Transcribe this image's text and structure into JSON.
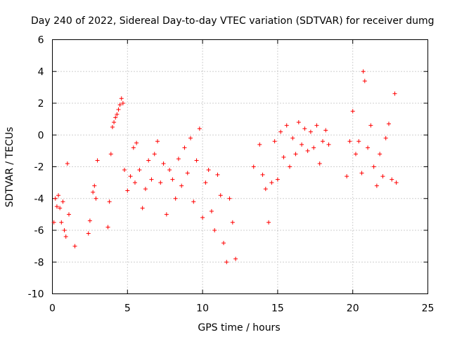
{
  "chart_data": {
    "type": "scatter",
    "title": "Day 240 of 2022, Sidereal Day-to-day VTEC variation (SDTVAR) for receiver dumg",
    "xlabel": "GPS time / hours",
    "ylabel": "SDTVAR / TECUs",
    "xlim": [
      0,
      25
    ],
    "ylim": [
      -10,
      6
    ],
    "xticks": [
      0,
      5,
      10,
      15,
      20,
      25
    ],
    "yticks": [
      -10,
      -8,
      -6,
      -4,
      -2,
      0,
      2,
      4,
      6
    ],
    "grid": true,
    "marker": "plus",
    "color": "#ff0000",
    "series": [
      {
        "name": "SDTVAR",
        "x": [
          0.1,
          0.2,
          0.3,
          0.4,
          0.5,
          0.6,
          0.7,
          0.8,
          0.9,
          1.0,
          1.1,
          1.5,
          2.4,
          2.5,
          2.7,
          2.8,
          2.9,
          3.0,
          3.7,
          3.8,
          3.9,
          4.0,
          4.1,
          4.2,
          4.3,
          4.4,
          4.5,
          4.6,
          4.7,
          4.8,
          5.0,
          5.2,
          5.4,
          5.5,
          5.6,
          5.8,
          6.0,
          6.2,
          6.4,
          6.6,
          6.8,
          7.0,
          7.2,
          7.4,
          7.6,
          7.8,
          8.0,
          8.2,
          8.4,
          8.6,
          8.8,
          9.0,
          9.2,
          9.4,
          9.6,
          9.8,
          10.0,
          10.2,
          10.4,
          10.6,
          10.8,
          11.0,
          11.2,
          11.4,
          11.6,
          11.8,
          12.0,
          12.2,
          13.4,
          13.8,
          14.0,
          14.2,
          14.4,
          14.6,
          14.8,
          15.0,
          15.2,
          15.4,
          15.6,
          15.8,
          16.0,
          16.2,
          16.4,
          16.6,
          16.8,
          17.0,
          17.2,
          17.4,
          17.6,
          17.8,
          18.0,
          18.2,
          18.4,
          19.6,
          19.8,
          20.0,
          20.2,
          20.4,
          20.6,
          20.7,
          20.8,
          21.0,
          21.2,
          21.4,
          21.6,
          21.8,
          22.0,
          22.2,
          22.4,
          22.6,
          22.8,
          22.9
        ],
        "y": [
          -5.5,
          -4.0,
          -4.5,
          -3.8,
          -4.6,
          -5.5,
          -4.2,
          -6.0,
          -6.4,
          -1.8,
          -5.0,
          -7.0,
          -6.2,
          -5.4,
          -3.6,
          -3.2,
          -4.0,
          -1.6,
          -5.8,
          -4.2,
          -1.2,
          0.5,
          0.8,
          1.1,
          1.3,
          1.6,
          1.9,
          2.3,
          2.0,
          -2.2,
          -3.5,
          -2.6,
          -0.8,
          -3.0,
          -0.5,
          -2.2,
          -4.6,
          -3.4,
          -1.6,
          -2.8,
          -1.2,
          -0.4,
          -3.0,
          -1.8,
          -5.0,
          -2.2,
          -2.8,
          -4.0,
          -1.5,
          -3.2,
          -0.8,
          -2.4,
          -0.2,
          -4.2,
          -1.6,
          0.4,
          -5.2,
          -3.0,
          -2.2,
          -4.8,
          -6.0,
          -2.5,
          -3.8,
          -6.8,
          -8.0,
          -4.0,
          -5.5,
          -7.8,
          -2.0,
          -0.6,
          -2.5,
          -3.4,
          -5.5,
          -3.0,
          -0.4,
          -2.8,
          0.2,
          -1.4,
          0.6,
          -2.0,
          -0.2,
          -1.2,
          0.8,
          -0.6,
          0.4,
          -1.0,
          0.2,
          -0.8,
          0.6,
          -1.8,
          -0.4,
          0.3,
          -0.6,
          -2.6,
          -0.4,
          1.5,
          -1.2,
          -0.4,
          -2.4,
          4.0,
          3.4,
          -0.8,
          0.6,
          -2.0,
          -3.2,
          -1.2,
          -2.6,
          -0.2,
          0.7,
          -2.8,
          2.6,
          -3.0
        ]
      }
    ]
  }
}
